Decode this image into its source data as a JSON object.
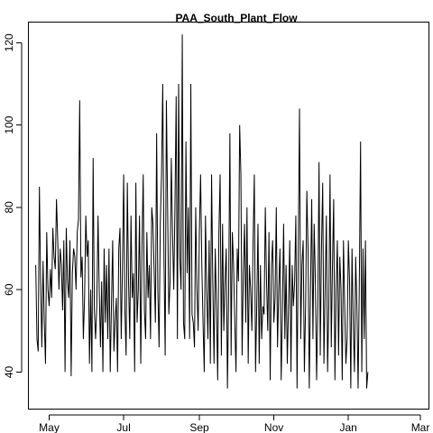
{
  "chart_data": {
    "type": "line",
    "title": "PAA_South_Plant_Flow",
    "xlabel": "",
    "ylabel": "",
    "x_range": [
      "2017-04-14",
      "2018-03-08"
    ],
    "ylim": [
      31,
      125
    ],
    "x_ticks": [
      {
        "date": "2017-05-01",
        "label": "May"
      },
      {
        "date": "2017-07-01",
        "label": "Jul"
      },
      {
        "date": "2017-09-01",
        "label": "Sep"
      },
      {
        "date": "2017-11-01",
        "label": "Nov"
      },
      {
        "date": "2018-01-01",
        "label": "Jan"
      },
      {
        "date": "2018-03-01",
        "label": "Mar"
      }
    ],
    "y_ticks": [
      40,
      60,
      80,
      100,
      120
    ],
    "grid": false,
    "legend": "none",
    "color": "#000000",
    "series": [
      {
        "x_start": "2017-04-20",
        "x_step_days": 1,
        "values": [
          66,
          48,
          45,
          85,
          62,
          46,
          67,
          52,
          42,
          74,
          60,
          56,
          65,
          58,
          75,
          68,
          65,
          82,
          72,
          60,
          70,
          66,
          55,
          72,
          40,
          75,
          62,
          58,
          72,
          39,
          64,
          70,
          68,
          60,
          74,
          77,
          106,
          63,
          68,
          48,
          58,
          78,
          68,
          72,
          42,
          60,
          40,
          92,
          55,
          48,
          56,
          78,
          60,
          46,
          62,
          40,
          70,
          52,
          66,
          48,
          70,
          40,
          56,
          72,
          45,
          52,
          58,
          40,
          70,
          75,
          48,
          65,
          88,
          55,
          44,
          86,
          62,
          48,
          78,
          58,
          64,
          40,
          86,
          52,
          60,
          78,
          42,
          70,
          88,
          55,
          48,
          74,
          58,
          66,
          48,
          80,
          76,
          64,
          52,
          98,
          60,
          46,
          76,
          88,
          110,
          68,
          44,
          106,
          80,
          54,
          62,
          92,
          74,
          60,
          80,
          107,
          48,
          110,
          68,
          60,
          122,
          52,
          48,
          96,
          64,
          80,
          48,
          110,
          54,
          52,
          46,
          80,
          60,
          50,
          74,
          88,
          66,
          52,
          40,
          78,
          60,
          48,
          72,
          42,
          88,
          62,
          42,
          70,
          56,
          38,
          74,
          88,
          44,
          76,
          50,
          62,
          70,
          36,
          60,
          98,
          44,
          74,
          66,
          52,
          40,
          70,
          62,
          100,
          88,
          44,
          64,
          76,
          52,
          80,
          42,
          66,
          60,
          50,
          72,
          88,
          40,
          56,
          76,
          42,
          66,
          48,
          56,
          54,
          80,
          62,
          50,
          74,
          38,
          66,
          72,
          52,
          58,
          80,
          46,
          60,
          70,
          38,
          55,
          76,
          48,
          66,
          42,
          56,
          72,
          40,
          66,
          56,
          62,
          78,
          36,
          70,
          104,
          48,
          66,
          72,
          40,
          56,
          84,
          70,
          36,
          60,
          82,
          48,
          76,
          62,
          38,
          56,
          91,
          44,
          70,
          86,
          42,
          60,
          78,
          40,
          56,
          88,
          46,
          66,
          82,
          38,
          60,
          72,
          44,
          68,
          60,
          38,
          72,
          56,
          42,
          48,
          72,
          62,
          36,
          70,
          52,
          40,
          68,
          56,
          36,
          62,
          96,
          40,
          70,
          48,
          72,
          36,
          40
        ]
      }
    ]
  }
}
